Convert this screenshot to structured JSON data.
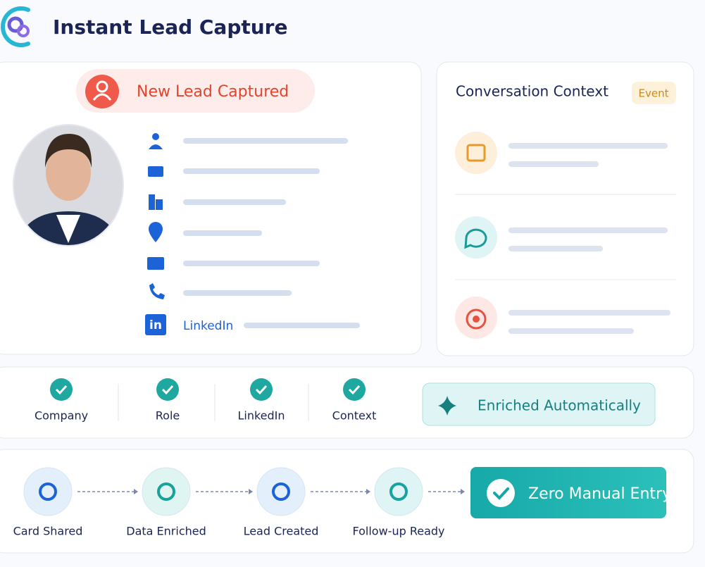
{
  "header": {
    "title": "Instant Lead Capture"
  },
  "lead_card": {
    "badge": "New Lead Captured",
    "linkedin": "LinkedIn"
  },
  "context_card": {
    "title": "Conversation Context",
    "badge": "Event"
  },
  "checks": [
    "Company",
    "Role",
    "LinkedIn",
    "Context"
  ],
  "enriched": "Enriched Automatically",
  "flow": {
    "steps": [
      "Card Shared",
      "Data Enriched",
      "Lead Created",
      "Follow-up Ready"
    ],
    "result": "Zero Manual Entry"
  }
}
